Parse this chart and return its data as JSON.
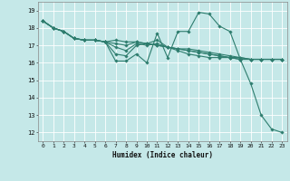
{
  "xlabel": "Humidex (Indice chaleur)",
  "bg_color": "#c5e8e8",
  "grid_color": "#ffffff",
  "line_color": "#2e7d6e",
  "xlim": [
    -0.5,
    23.5
  ],
  "ylim": [
    11.5,
    19.5
  ],
  "yticks": [
    12,
    13,
    14,
    15,
    16,
    17,
    18,
    19
  ],
  "xticks": [
    0,
    1,
    2,
    3,
    4,
    5,
    6,
    7,
    8,
    9,
    10,
    11,
    12,
    13,
    14,
    15,
    16,
    17,
    18,
    19,
    20,
    21,
    22,
    23
  ],
  "lines": [
    [
      18.4,
      18.0,
      17.8,
      17.4,
      17.3,
      17.3,
      17.2,
      16.1,
      16.1,
      16.5,
      16.0,
      17.7,
      16.3,
      17.8,
      17.8,
      18.9,
      18.8,
      18.1,
      17.8,
      16.2,
      14.8,
      13.0,
      12.2,
      12.0
    ],
    [
      18.4,
      18.0,
      17.8,
      17.4,
      17.3,
      17.3,
      17.2,
      16.5,
      16.4,
      17.0,
      17.1,
      17.3,
      16.9,
      16.7,
      16.5,
      16.4,
      16.3,
      16.3,
      16.3,
      16.3,
      16.2,
      16.2,
      16.2,
      16.2
    ],
    [
      18.4,
      18.0,
      17.8,
      17.4,
      17.3,
      17.3,
      17.2,
      16.9,
      16.7,
      17.1,
      17.0,
      17.1,
      16.9,
      16.8,
      16.7,
      16.6,
      16.5,
      16.4,
      16.3,
      16.2,
      16.2,
      16.2,
      16.2,
      16.2
    ],
    [
      18.4,
      18.0,
      17.8,
      17.4,
      17.3,
      17.3,
      17.2,
      17.1,
      17.0,
      17.2,
      17.1,
      17.0,
      16.9,
      16.8,
      16.7,
      16.6,
      16.5,
      16.4,
      16.3,
      16.2,
      16.2,
      16.2,
      16.2,
      16.2
    ],
    [
      18.4,
      18.0,
      17.8,
      17.4,
      17.3,
      17.3,
      17.2,
      17.3,
      17.2,
      17.2,
      17.1,
      17.0,
      16.9,
      16.8,
      16.8,
      16.7,
      16.6,
      16.5,
      16.4,
      16.3,
      16.2,
      16.2,
      16.2,
      16.2
    ]
  ]
}
